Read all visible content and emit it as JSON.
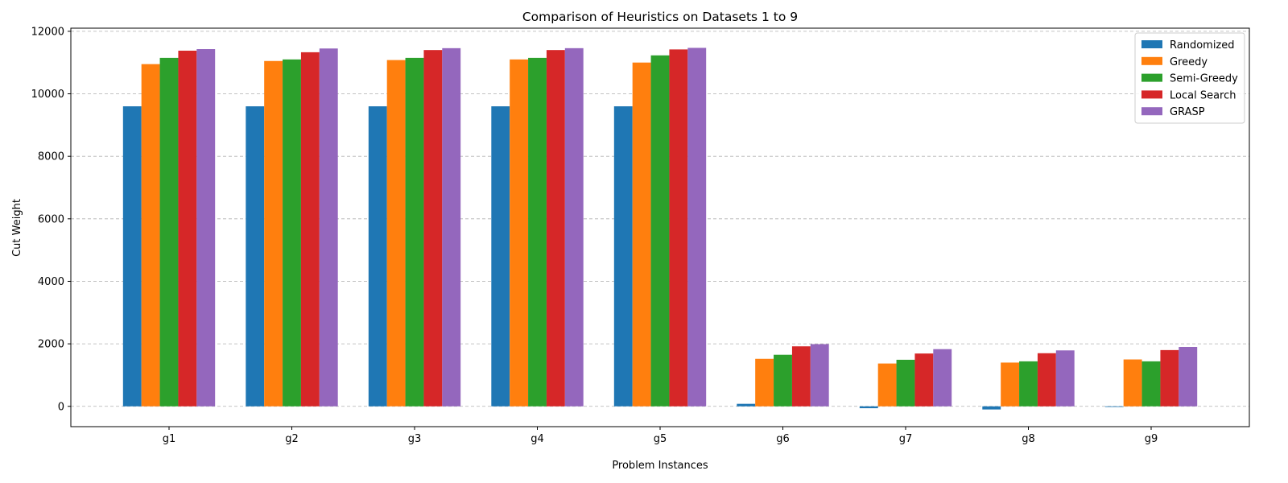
{
  "chart_data": {
    "type": "bar",
    "title": "Comparison of Heuristics on Datasets 1 to 9",
    "xlabel": "Problem Instances",
    "ylabel": "Cut Weight",
    "categories": [
      "g1",
      "g2",
      "g3",
      "g4",
      "g5",
      "g6",
      "g7",
      "g8",
      "g9"
    ],
    "ylim": [
      -650,
      12100
    ],
    "yticks": [
      0,
      2000,
      4000,
      6000,
      8000,
      10000,
      12000
    ],
    "grid": "y-dashed",
    "legend_position": "top-right",
    "series": [
      {
        "name": "Randomized",
        "color": "#1f77b4",
        "values": [
          9600,
          9600,
          9600,
          9600,
          9600,
          80,
          -60,
          -100,
          -20
        ]
      },
      {
        "name": "Greedy",
        "color": "#ff7f0e",
        "values": [
          10950,
          11050,
          11080,
          11100,
          11000,
          1520,
          1370,
          1400,
          1500
        ]
      },
      {
        "name": "Semi-Greedy",
        "color": "#2ca02c",
        "values": [
          11150,
          11100,
          11150,
          11150,
          11230,
          1650,
          1490,
          1440,
          1440
        ]
      },
      {
        "name": "Local Search",
        "color": "#d62728",
        "values": [
          11380,
          11330,
          11400,
          11400,
          11420,
          1920,
          1690,
          1700,
          1800
        ]
      },
      {
        "name": "GRASP",
        "color": "#9467bd",
        "values": [
          11430,
          11450,
          11460,
          11460,
          11470,
          1990,
          1830,
          1790,
          1900
        ]
      }
    ]
  }
}
